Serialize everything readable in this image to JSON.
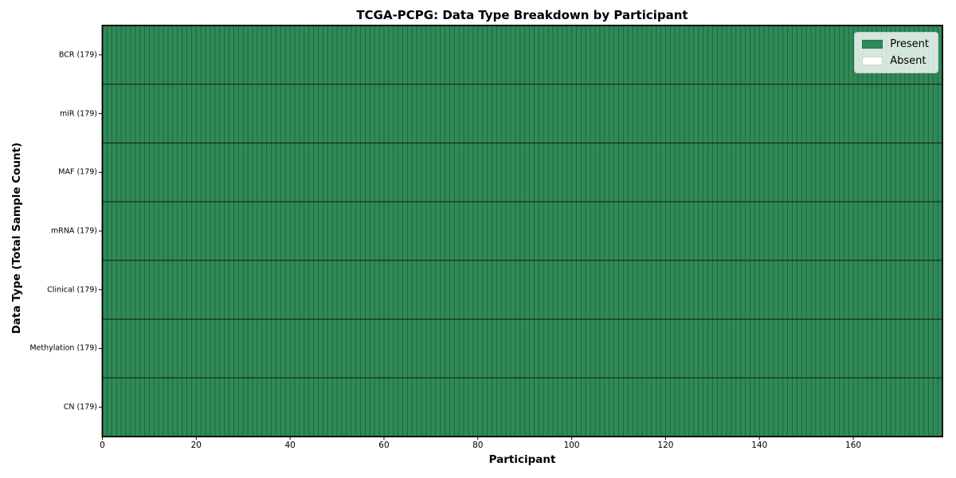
{
  "figure": {
    "background": "#ffffff"
  },
  "chart_data": {
    "type": "heatmap",
    "title": "TCGA-PCPG: Data Type Breakdown by Participant",
    "xlabel": "Participant",
    "ylabel": "Data Type (Total Sample Count)",
    "x_ticks": [
      0,
      20,
      40,
      60,
      80,
      100,
      120,
      140,
      160
    ],
    "xlim": [
      0,
      179
    ],
    "n_participants": 179,
    "rows": [
      {
        "label": "BCR (179)",
        "data_type": "BCR",
        "total_sample_count": 179,
        "present_count": 179,
        "absent_count": 0
      },
      {
        "label": "miR (179)",
        "data_type": "miR",
        "total_sample_count": 179,
        "present_count": 179,
        "absent_count": 0
      },
      {
        "label": "MAF (179)",
        "data_type": "MAF",
        "total_sample_count": 179,
        "present_count": 179,
        "absent_count": 0
      },
      {
        "label": "mRNA (179)",
        "data_type": "mRNA",
        "total_sample_count": 179,
        "present_count": 179,
        "absent_count": 0
      },
      {
        "label": "Clinical (179)",
        "data_type": "Clinical",
        "total_sample_count": 179,
        "present_count": 179,
        "absent_count": 0
      },
      {
        "label": "Methylation (179)",
        "data_type": "Methylation",
        "total_sample_count": 179,
        "present_count": 179,
        "absent_count": 0
      },
      {
        "label": "CN (179)",
        "data_type": "CN",
        "total_sample_count": 179,
        "present_count": 179,
        "absent_count": 0
      }
    ],
    "cells": "all_present",
    "legend": {
      "position": "upper right",
      "entries": [
        {
          "label": "Present",
          "color": "#2e8b57"
        },
        {
          "label": "Absent",
          "color": "#ffffff"
        }
      ]
    },
    "colors": {
      "present": "#2e8b57",
      "absent": "#ffffff",
      "cell_edge": "#26573c",
      "row_separator": "#16281e",
      "plot_border": "#000000",
      "tick": "#000000"
    },
    "layout_hints": {
      "grid": "cell-edges",
      "legend_frame": true
    }
  }
}
